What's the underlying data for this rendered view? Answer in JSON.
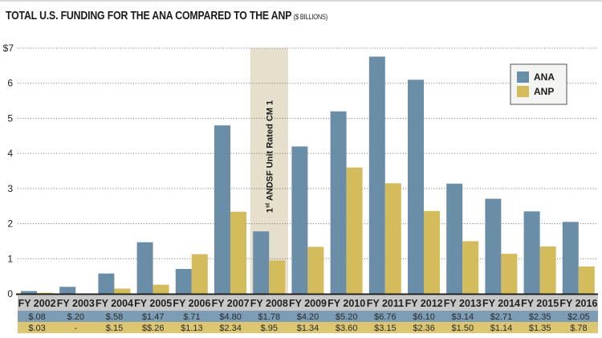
{
  "title": "TOTAL U.S. FUNDING FOR THE ANA COMPARED TO THE ANP",
  "title_unit": "($ BILLIONS)",
  "chart_data": {
    "type": "bar",
    "title": "TOTAL U.S. FUNDING FOR THE ANA COMPARED TO THE ANP ($ BILLIONS)",
    "xlabel": "",
    "ylabel": "",
    "ylim": [
      0,
      7
    ],
    "yticks": [
      0,
      1,
      2,
      3,
      4,
      5,
      6,
      7
    ],
    "ytick_labels": [
      "0",
      "1",
      "2",
      "3",
      "4",
      "5",
      "6",
      "$7"
    ],
    "grid": true,
    "legend_position": "top-right",
    "categories": [
      "FY 2002",
      "FY 2003",
      "FY 2004",
      "FY 2005",
      "FY 2006",
      "FY 2007",
      "FY 2008",
      "FY 2009",
      "FY 2010",
      "FY 2011",
      "FY 2012",
      "FY 2013",
      "FY 2014",
      "FY 2015",
      "FY 2016"
    ],
    "series": [
      {
        "name": "ANA",
        "color": "#6b8ea8",
        "values": [
          0.08,
          0.2,
          0.58,
          1.47,
          0.71,
          4.8,
          1.78,
          4.2,
          5.2,
          6.76,
          6.1,
          3.14,
          2.71,
          2.35,
          2.05
        ],
        "labels": [
          "$.08",
          "$.20",
          "$.58",
          "$1.47",
          "$.71",
          "$4.80",
          "$1.78",
          "$4.20",
          "$5.20",
          "$6.76",
          "$6.10",
          "$3.14",
          "$2.71",
          "$2.35",
          "$2.05"
        ]
      },
      {
        "name": "ANP",
        "color": "#d4bc5c",
        "values": [
          0.03,
          0,
          0.15,
          0.26,
          1.13,
          2.34,
          0.95,
          1.34,
          3.6,
          3.15,
          2.36,
          1.5,
          1.14,
          1.35,
          0.78
        ],
        "labels": [
          "$.03",
          "-",
          "$.15",
          "$$.26",
          "$1.13",
          "$2.34",
          "$.95",
          "$1.34",
          "$3.60",
          "$3.15",
          "$2.36",
          "$1.50",
          "$1.14",
          "$1.35",
          "$.78"
        ]
      }
    ],
    "annotations": [
      {
        "category": "FY 2008",
        "text_sup": "st",
        "text_pre": "1",
        "text_post": " ANDSF Unit Rated CM 1",
        "band_color": "#e5dfcb"
      }
    ],
    "table_colors": {
      "header": "#c8c8c8",
      "ana_row": "#7d9db5",
      "anp_row": "#dcc672"
    }
  }
}
